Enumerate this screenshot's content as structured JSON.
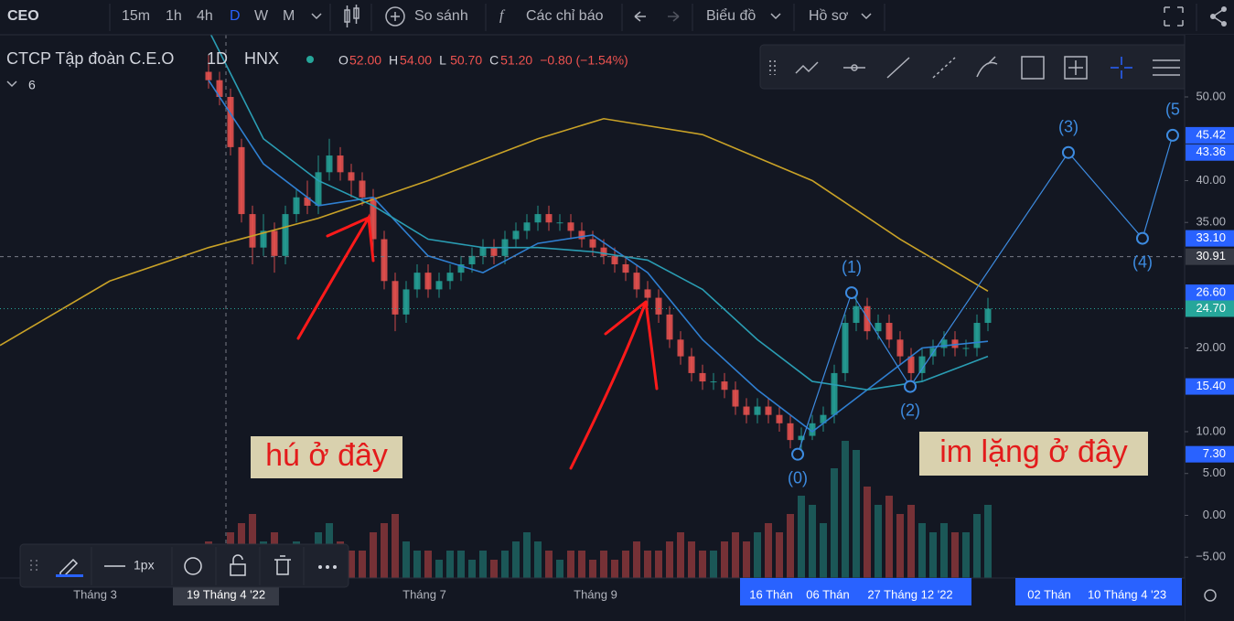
{
  "toolbar": {
    "symbol": "CEO",
    "intervals": [
      "15m",
      "1h",
      "4h",
      "D",
      "W",
      "M"
    ],
    "compare": "So sánh",
    "indicators": "Các chỉ báo",
    "chart_menu": "Biểu đồ",
    "profile_menu": "Hồ sơ"
  },
  "legend": {
    "name": "CTCP Tập đoàn C.E.O",
    "interval": "1D",
    "exchange": "HNX",
    "ohlc": [
      {
        "key": "O",
        "value": 52,
        "label": "52.00"
      },
      {
        "key": "H",
        "value": 54,
        "label": "54.00"
      },
      {
        "key": "L",
        "value": 50.7,
        "label": "50.70"
      },
      {
        "key": "C",
        "value": 51.2,
        "label": "51.20"
      }
    ],
    "change": "−0.80 (−1.54%)",
    "indicator_count": "6"
  },
  "drawing_toolbar": {
    "width_label": "1px"
  },
  "time_labels": [
    "Tháng 3",
    "19 Tháng 4 '22",
    "Tháng 7",
    "Tháng 9",
    "16 Thán",
    "06 Thán",
    "27 Tháng 12 '22",
    "02 Thán",
    "10 Tháng 4 '23"
  ],
  "chart_data": {
    "type": "candlestick",
    "up_color": "#26a69a",
    "down_color": "#ef5350",
    "ylim": [
      -7.49,
      57.43
    ],
    "yticks": [
      {
        "value": 50,
        "label": "50.00"
      },
      {
        "value": 40,
        "label": "40.00"
      },
      {
        "value": 35,
        "label": "35.00"
      },
      {
        "value": 20,
        "label": "20.00"
      },
      {
        "value": 10,
        "label": "10.00"
      },
      {
        "value": 5,
        "label": "5.00"
      },
      {
        "value": 0,
        "label": "0.00"
      },
      {
        "value": -5,
        "label": "−5.00"
      }
    ],
    "candles": [
      [
        53,
        55,
        51,
        52
      ],
      [
        52,
        53,
        49,
        50
      ],
      [
        50,
        51,
        43,
        44
      ],
      [
        44,
        45,
        35,
        36
      ],
      [
        36,
        37,
        30,
        32
      ],
      [
        32,
        36,
        31,
        34
      ],
      [
        34,
        35,
        29,
        31
      ],
      [
        31,
        37,
        30,
        36
      ],
      [
        36,
        39,
        35,
        38
      ],
      [
        38,
        40,
        36,
        37
      ],
      [
        37,
        43,
        36,
        41
      ],
      [
        41,
        45,
        40,
        43
      ],
      [
        43,
        44,
        40,
        41
      ],
      [
        41,
        42,
        38,
        40
      ],
      [
        40,
        41,
        37,
        38
      ],
      [
        38,
        39,
        31,
        33
      ],
      [
        33,
        34,
        27,
        28
      ],
      [
        28,
        29,
        22,
        24
      ],
      [
        24,
        28,
        23,
        27
      ],
      [
        27,
        30,
        26,
        29
      ],
      [
        29,
        30,
        26,
        27
      ],
      [
        27,
        29,
        26,
        28
      ],
      [
        28,
        30,
        27,
        29
      ],
      [
        29,
        31,
        28,
        30
      ],
      [
        30,
        32,
        29,
        31
      ],
      [
        31,
        33,
        30,
        32
      ],
      [
        32,
        33,
        30,
        31
      ],
      [
        31,
        34,
        30,
        33
      ],
      [
        33,
        35,
        32,
        34
      ],
      [
        34,
        36,
        33,
        35
      ],
      [
        35,
        37,
        34,
        36
      ],
      [
        36,
        37,
        34,
        35
      ],
      [
        35,
        36,
        34,
        35
      ],
      [
        35,
        36,
        33,
        34
      ],
      [
        34,
        35,
        32,
        33
      ],
      [
        33,
        34,
        31,
        32
      ],
      [
        32,
        33,
        30,
        31
      ],
      [
        31,
        32,
        29,
        30
      ],
      [
        30,
        31,
        28,
        29
      ],
      [
        29,
        30,
        26,
        27
      ],
      [
        27,
        28,
        25,
        26
      ],
      [
        26,
        27,
        23,
        24
      ],
      [
        24,
        25,
        20,
        21
      ],
      [
        21,
        22,
        18,
        19
      ],
      [
        19,
        20,
        16,
        17
      ],
      [
        17,
        18,
        15,
        16
      ],
      [
        16,
        17,
        15,
        16
      ],
      [
        16,
        17,
        14,
        15
      ],
      [
        15,
        16,
        12,
        13
      ],
      [
        13,
        14,
        11,
        12
      ],
      [
        12,
        14,
        11,
        13
      ],
      [
        13,
        14,
        11,
        12
      ],
      [
        12,
        13,
        10,
        11
      ],
      [
        11,
        12,
        8,
        9
      ],
      [
        9,
        10.5,
        7.3,
        9.5
      ],
      [
        9.5,
        12,
        9,
        11
      ],
      [
        11,
        13,
        10,
        12
      ],
      [
        12,
        18,
        11,
        17
      ],
      [
        17,
        24,
        16,
        23
      ],
      [
        23,
        26.6,
        22,
        25
      ],
      [
        25,
        26,
        21,
        22
      ],
      [
        22,
        24,
        21,
        23
      ],
      [
        23,
        24,
        20,
        21
      ],
      [
        21,
        22,
        18,
        19
      ],
      [
        19,
        20,
        15.4,
        17
      ],
      [
        17,
        20,
        16,
        19
      ],
      [
        19,
        21,
        18,
        20
      ],
      [
        20,
        22,
        19,
        21
      ],
      [
        21,
        22,
        19,
        20
      ],
      [
        20,
        21,
        19,
        20
      ],
      [
        20,
        24,
        19,
        23
      ],
      [
        23,
        26,
        22,
        24.7
      ]
    ],
    "volume": [
      4,
      3,
      5,
      6,
      7,
      4,
      5,
      3,
      4,
      3,
      5,
      6,
      4,
      3,
      3,
      5,
      6,
      7,
      4,
      3,
      3,
      2,
      3,
      3,
      2,
      3,
      2,
      3,
      4,
      5,
      4,
      3,
      2,
      3,
      3,
      2,
      3,
      2,
      3,
      4,
      3,
      3,
      4,
      5,
      4,
      3,
      3,
      4,
      5,
      4,
      5,
      6,
      5,
      7,
      9,
      8,
      6,
      12,
      15,
      14,
      10,
      8,
      9,
      7,
      8,
      6,
      5,
      6,
      5,
      5,
      7,
      8
    ],
    "ma": [
      {
        "color": "#c9a227",
        "x": [
          -19,
          -9,
          0,
          10,
          20,
          30,
          36,
          45,
          55,
          63,
          71
        ],
        "values": [
          20.3,
          28,
          32,
          35.5,
          40,
          45,
          47.4,
          45.5,
          40,
          33,
          26.8
        ]
      },
      {
        "color": "#2f7fd1",
        "x": [
          0,
          5,
          10,
          15,
          20,
          25,
          30,
          35,
          40,
          45,
          50,
          55,
          60,
          65,
          71
        ],
        "values": [
          52,
          42,
          37,
          38,
          31,
          29,
          32.5,
          33.5,
          29,
          21,
          15,
          10,
          15,
          20,
          20.8
        ]
      },
      {
        "color": "#2a9db3",
        "x": [
          0,
          5,
          10,
          15,
          20,
          25,
          30,
          35,
          40,
          45,
          50,
          55,
          60,
          65,
          71
        ],
        "values": [
          58,
          45,
          40,
          37,
          33,
          32,
          32,
          31.5,
          30.5,
          27,
          21,
          16,
          15,
          16,
          19
        ]
      }
    ],
    "waves": {
      "color": "#3d8be0",
      "points": [
        {
          "label": "(0)",
          "x": 53.67,
          "value": 7.3
        },
        {
          "label": "(1)",
          "x": 58.58,
          "value": 26.6
        },
        {
          "label": "(2)",
          "x": 63.92,
          "value": 15.4
        },
        {
          "label": "(3)",
          "x": 78.33,
          "value": 43.36
        },
        {
          "label": "(4)",
          "x": 85.08,
          "value": 33.1
        },
        {
          "label": "(5",
          "x": 87.83,
          "value": 45.42
        }
      ]
    },
    "price_labels": [
      {
        "value": 45.42,
        "label": "45.42",
        "color": "#2962ff"
      },
      {
        "value": 43.36,
        "label": "43.36",
        "color": "#2962ff"
      },
      {
        "value": 33.1,
        "label": "33.10",
        "color": "#2962ff"
      },
      {
        "value": 30.91,
        "label": "30.91",
        "color": "#363a45"
      },
      {
        "value": 26.6,
        "label": "26.60",
        "color": "#2962ff"
      },
      {
        "value": 24.7,
        "label": "24.70",
        "color": "#26a69a"
      },
      {
        "value": 15.4,
        "label": "15.40",
        "color": "#2962ff"
      },
      {
        "value": 7.3,
        "label": "7.30",
        "color": "#2962ff"
      }
    ],
    "annotations": [
      "hú ở đây",
      "im lặng ở đây"
    ]
  }
}
